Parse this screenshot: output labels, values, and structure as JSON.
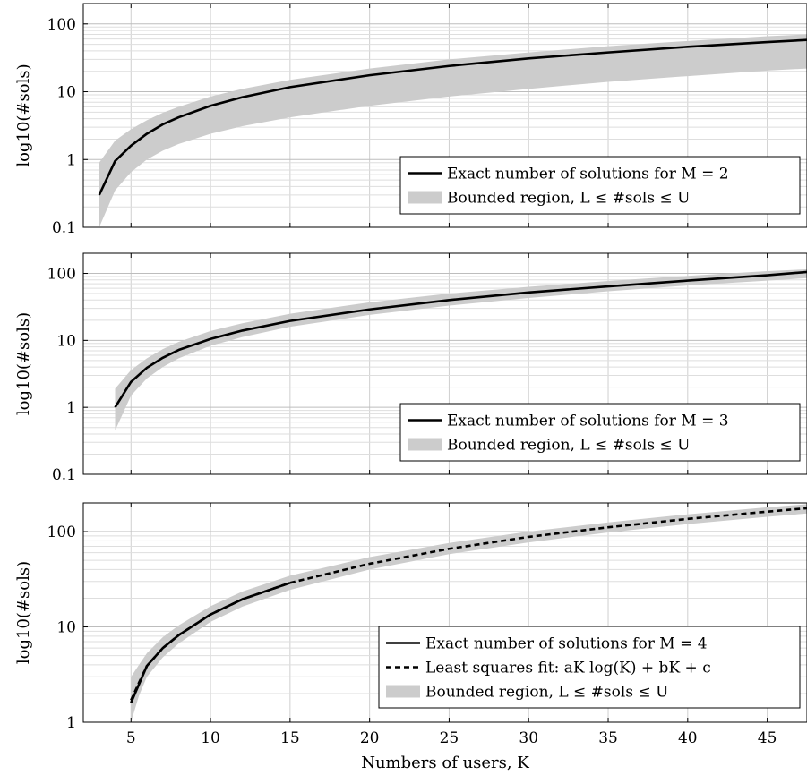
{
  "chart_data": [
    {
      "type": "line",
      "ylabel": "log10(#sols)",
      "y_scale": "log",
      "ylim": [
        0.1,
        200
      ],
      "xlim": [
        2,
        47.5
      ],
      "x_ticks": [
        5,
        10,
        15,
        20,
        25,
        30,
        35,
        40,
        45
      ],
      "x_tick_labels_shown": false,
      "y_ticks": [
        0.1,
        1,
        10,
        100
      ],
      "y_tick_labels": [
        "0.1",
        "1",
        "10",
        "100"
      ],
      "grid": true,
      "legend_position": "bottom-right",
      "series": [
        {
          "name": "Exact number of solutions for M = 2",
          "style": "solid",
          "color": "#000000",
          "x": [
            3,
            4,
            5,
            6,
            7,
            8,
            10,
            12,
            15,
            20,
            25,
            30,
            35,
            40,
            45,
            47.5
          ],
          "y": [
            0.3,
            0.95,
            1.6,
            2.4,
            3.3,
            4.2,
            6.2,
            8.3,
            11.7,
            17.5,
            24,
            31,
            38,
            46,
            54,
            58
          ]
        },
        {
          "name": "Bounded region, L ≤ #sols ≤ U",
          "style": "band",
          "color": "#cccccc",
          "x": [
            3,
            4,
            5,
            6,
            7,
            8,
            10,
            12,
            15,
            20,
            25,
            30,
            35,
            40,
            45,
            47.5
          ],
          "lower": [
            0.1,
            0.35,
            0.65,
            1.0,
            1.35,
            1.7,
            2.4,
            3.1,
            4.2,
            6.2,
            8.5,
            11,
            14,
            17,
            20.5,
            22
          ],
          "upper": [
            0.9,
            1.9,
            2.8,
            3.8,
            4.9,
            6.0,
            8.5,
            11,
            15,
            22,
            30,
            38,
            47,
            56,
            66,
            70
          ]
        }
      ]
    },
    {
      "type": "line",
      "ylabel": "log10(#sols)",
      "y_scale": "log",
      "ylim": [
        0.1,
        200
      ],
      "xlim": [
        2,
        47.5
      ],
      "x_ticks": [
        5,
        10,
        15,
        20,
        25,
        30,
        35,
        40,
        45
      ],
      "x_tick_labels_shown": false,
      "y_ticks": [
        0.1,
        1,
        10,
        100
      ],
      "y_tick_labels": [
        "0.1",
        "1",
        "10",
        "100"
      ],
      "grid": true,
      "legend_position": "bottom-right",
      "series": [
        {
          "name": "Exact number of solutions for M = 3",
          "style": "solid",
          "color": "#000000",
          "x": [
            4,
            5,
            6,
            7,
            8,
            10,
            12,
            15,
            20,
            25,
            30,
            35,
            40,
            45,
            47.5
          ],
          "y": [
            1.0,
            2.4,
            3.9,
            5.5,
            7.2,
            10.5,
            14,
            19.5,
            29,
            40,
            52,
            64,
            78,
            94,
            105
          ]
        },
        {
          "name": "Bounded region, L ≤ #sols ≤ U",
          "style": "band",
          "color": "#cccccc",
          "x": [
            4,
            5,
            6,
            7,
            8,
            10,
            12,
            15,
            20,
            25,
            30,
            35,
            40,
            45,
            47.5
          ],
          "lower": [
            0.45,
            1.5,
            2.7,
            4.0,
            5.4,
            8.3,
            11.2,
            16,
            24,
            33,
            43,
            54,
            66,
            78,
            85
          ],
          "upper": [
            1.9,
            3.6,
            5.4,
            7.4,
            9.5,
            13.8,
            18,
            25,
            37,
            50,
            63,
            77,
            92,
            108,
            115
          ]
        }
      ]
    },
    {
      "type": "line",
      "xlabel": "Numbers of users, K",
      "ylabel": "log10(#sols)",
      "y_scale": "log",
      "ylim": [
        1,
        200
      ],
      "xlim": [
        2,
        47.5
      ],
      "x_ticks": [
        5,
        10,
        15,
        20,
        25,
        30,
        35,
        40,
        45
      ],
      "x_tick_labels": [
        "5",
        "10",
        "15",
        "20",
        "25",
        "30",
        "35",
        "40",
        "45"
      ],
      "y_ticks": [
        1,
        10,
        100
      ],
      "y_tick_labels": [
        "1",
        "10",
        "100"
      ],
      "grid": true,
      "legend_position": "bottom-right",
      "series": [
        {
          "name": "Exact number of solutions for M = 4",
          "style": "solid",
          "color": "#000000",
          "x": [
            5,
            5.5,
            6,
            7,
            8,
            10,
            12,
            15
          ],
          "y": [
            1.6,
            2.5,
            3.9,
            6.0,
            8.2,
            13.5,
            19.5,
            29
          ]
        },
        {
          "name": "Least squares fit: aK log(K) + bK + c",
          "style": "dashed",
          "color": "#000000",
          "x": [
            5,
            5.5,
            6,
            7,
            8,
            10,
            12,
            15,
            20,
            25,
            30,
            35,
            40,
            45,
            47.5
          ],
          "y": [
            1.7,
            2.6,
            3.9,
            6.0,
            8.2,
            13.5,
            19.5,
            29,
            46,
            66,
            88,
            111,
            136,
            162,
            176
          ]
        },
        {
          "name": "Bounded region, L ≤ #sols ≤ U",
          "style": "band",
          "color": "#cccccc",
          "x": [
            5,
            5.5,
            6,
            7,
            8,
            10,
            12,
            15,
            20,
            25,
            30,
            35,
            40,
            45,
            47.5
          ],
          "lower": [
            1.0,
            1.9,
            3.0,
            4.8,
            6.7,
            11.3,
            16.3,
            24.5,
            40,
            58,
            77,
            98,
            120,
            143,
            155
          ],
          "upper": [
            3.0,
            4.0,
            5.3,
            7.8,
            10.4,
            16.5,
            23.5,
            34.5,
            54,
            76,
            100,
            125,
            152,
            180,
            194
          ]
        }
      ]
    }
  ]
}
